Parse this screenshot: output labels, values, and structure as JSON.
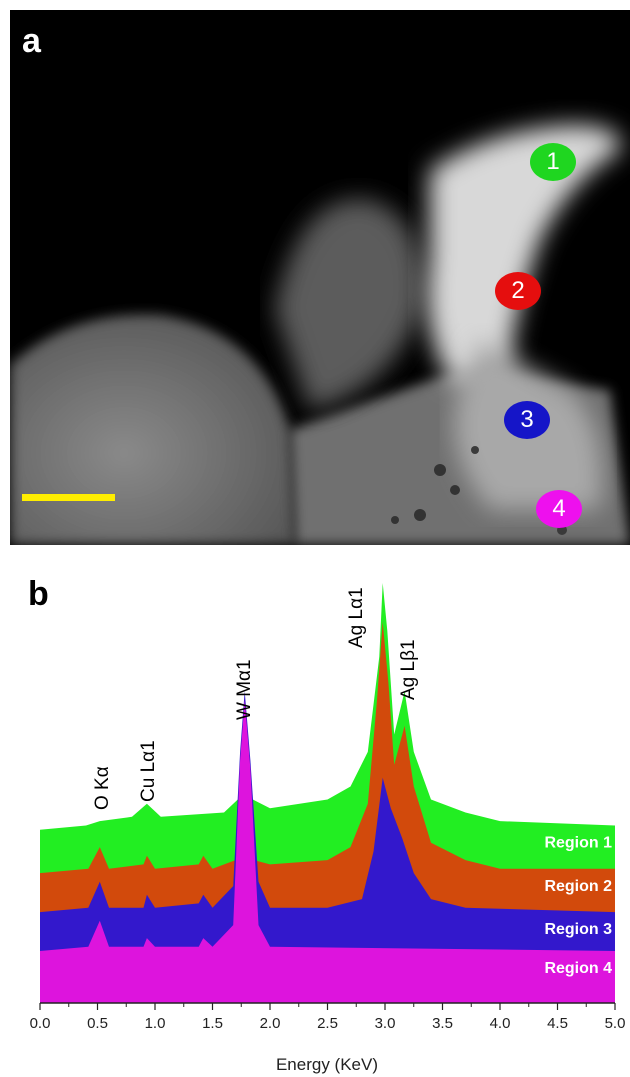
{
  "panel_a": {
    "letter": "a",
    "markers": [
      {
        "label": "1",
        "color": "#1fd620"
      },
      {
        "label": "2",
        "color": "#e50e0e"
      },
      {
        "label": "3",
        "color": "#1515c8"
      },
      {
        "label": "4",
        "color": "#ee10ee"
      }
    ],
    "scale_bar_color": "#ffee00"
  },
  "panel_b": {
    "letter": "b"
  },
  "chart_data": {
    "type": "area",
    "xlabel": "Energy (KeV)",
    "ylabel": "",
    "xlim": [
      0.0,
      5.0
    ],
    "x_ticks": [
      "0.0",
      "0.5",
      "1.0",
      "1.5",
      "2.0",
      "2.5",
      "3.0",
      "3.5",
      "4.0",
      "4.5",
      "5.0"
    ],
    "peak_labels": [
      "O Kα",
      "Cu Lα1",
      "W Mα1",
      "Ag Lα1",
      "Ag Lβ1"
    ],
    "series": [
      {
        "name": "Region 1",
        "color": "#22ee22",
        "points": [
          [
            0,
            0.4
          ],
          [
            0.4,
            0.41
          ],
          [
            0.52,
            0.42
          ],
          [
            0.8,
            0.43
          ],
          [
            0.93,
            0.46
          ],
          [
            1.05,
            0.43
          ],
          [
            1.6,
            0.44
          ],
          [
            1.72,
            0.47
          ],
          [
            1.78,
            0.5
          ],
          [
            1.85,
            0.47
          ],
          [
            2.0,
            0.45
          ],
          [
            2.5,
            0.47
          ],
          [
            2.7,
            0.5
          ],
          [
            2.85,
            0.58
          ],
          [
            2.95,
            0.8
          ],
          [
            2.98,
            0.97
          ],
          [
            3.02,
            0.86
          ],
          [
            3.08,
            0.62
          ],
          [
            3.17,
            0.72
          ],
          [
            3.25,
            0.58
          ],
          [
            3.4,
            0.47
          ],
          [
            3.7,
            0.44
          ],
          [
            4.0,
            0.42
          ],
          [
            5.0,
            0.41
          ]
        ]
      },
      {
        "name": "Region 2",
        "color": "#d24a0c",
        "points": [
          [
            0,
            0.3
          ],
          [
            0.42,
            0.31
          ],
          [
            0.52,
            0.36
          ],
          [
            0.6,
            0.31
          ],
          [
            0.9,
            0.32
          ],
          [
            0.93,
            0.34
          ],
          [
            1.0,
            0.31
          ],
          [
            1.38,
            0.32
          ],
          [
            1.42,
            0.34
          ],
          [
            1.5,
            0.31
          ],
          [
            1.7,
            0.33
          ],
          [
            1.78,
            0.36
          ],
          [
            1.86,
            0.33
          ],
          [
            2.0,
            0.32
          ],
          [
            2.5,
            0.33
          ],
          [
            2.7,
            0.36
          ],
          [
            2.85,
            0.46
          ],
          [
            2.93,
            0.7
          ],
          [
            2.98,
            0.88
          ],
          [
            3.03,
            0.74
          ],
          [
            3.08,
            0.55
          ],
          [
            3.17,
            0.64
          ],
          [
            3.25,
            0.5
          ],
          [
            3.4,
            0.37
          ],
          [
            3.7,
            0.33
          ],
          [
            4.0,
            0.31
          ],
          [
            5.0,
            0.31
          ]
        ]
      },
      {
        "name": "Region 3",
        "color": "#3318cc",
        "points": [
          [
            0,
            0.21
          ],
          [
            0.42,
            0.22
          ],
          [
            0.52,
            0.28
          ],
          [
            0.6,
            0.22
          ],
          [
            0.9,
            0.22
          ],
          [
            0.93,
            0.25
          ],
          [
            1.0,
            0.22
          ],
          [
            1.38,
            0.23
          ],
          [
            1.42,
            0.25
          ],
          [
            1.5,
            0.22
          ],
          [
            1.68,
            0.27
          ],
          [
            1.74,
            0.58
          ],
          [
            1.78,
            0.72
          ],
          [
            1.83,
            0.56
          ],
          [
            1.9,
            0.28
          ],
          [
            2.0,
            0.22
          ],
          [
            2.5,
            0.22
          ],
          [
            2.8,
            0.24
          ],
          [
            2.9,
            0.35
          ],
          [
            2.98,
            0.52
          ],
          [
            3.05,
            0.45
          ],
          [
            3.15,
            0.38
          ],
          [
            3.25,
            0.3
          ],
          [
            3.4,
            0.24
          ],
          [
            3.7,
            0.22
          ],
          [
            5.0,
            0.21
          ]
        ]
      },
      {
        "name": "Region 4",
        "color": "#dd14dd",
        "points": [
          [
            0,
            0.12
          ],
          [
            0.42,
            0.13
          ],
          [
            0.52,
            0.19
          ],
          [
            0.6,
            0.13
          ],
          [
            0.9,
            0.13
          ],
          [
            0.93,
            0.15
          ],
          [
            1.0,
            0.13
          ],
          [
            1.38,
            0.13
          ],
          [
            1.42,
            0.15
          ],
          [
            1.5,
            0.13
          ],
          [
            1.68,
            0.18
          ],
          [
            1.74,
            0.56
          ],
          [
            1.78,
            0.7
          ],
          [
            1.83,
            0.54
          ],
          [
            1.9,
            0.18
          ],
          [
            2.0,
            0.13
          ],
          [
            5.0,
            0.12
          ]
        ]
      }
    ]
  }
}
